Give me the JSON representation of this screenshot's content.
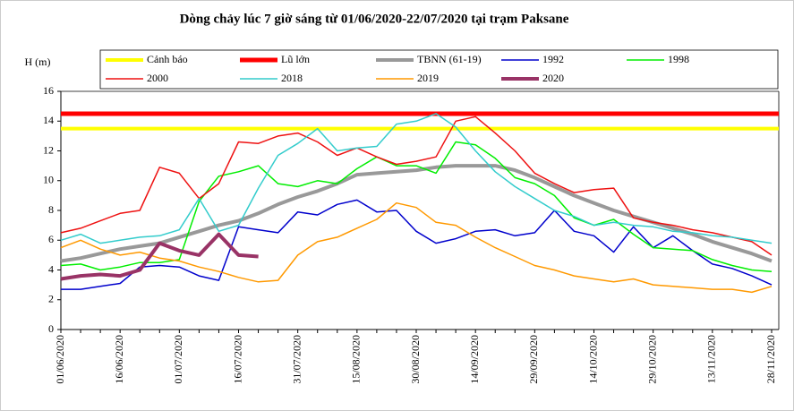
{
  "chart_data": {
    "type": "line",
    "title": "Dòng chảy lúc 7 giờ sáng từ 01/06/2020-22/07/2020 tại trạm Paksane",
    "y_label": "H (m)",
    "categories": [
      "01/06/2020",
      null,
      null,
      "16/06/2020",
      null,
      null,
      "01/07/2020",
      null,
      null,
      "16/07/2020",
      null,
      null,
      "31/07/2020",
      null,
      null,
      "15/08/2020",
      null,
      null,
      "30/08/2020",
      null,
      null,
      "14/09/2020",
      null,
      null,
      "29/09/2020",
      null,
      null,
      "14/10/2020",
      null,
      null,
      "29/10/2020",
      null,
      null,
      "13/11/2020",
      null,
      null,
      "28/11/2020"
    ],
    "ylim": [
      0,
      16
    ],
    "yticks": [
      0,
      2,
      4,
      6,
      8,
      10,
      12,
      14,
      16
    ],
    "series": [
      {
        "name": "Cảnh báo",
        "color": "#ffff00",
        "width": 4,
        "value": 13.5
      },
      {
        "name": "Lũ lớn",
        "color": "#ff0000",
        "width": 5,
        "value": 14.5
      },
      {
        "name": "TBNN (61-19)",
        "color": "#999999",
        "width": 4,
        "values": [
          4.6,
          4.8,
          5.1,
          5.4,
          5.6,
          5.8,
          6.2,
          6.6,
          7.0,
          7.3,
          7.8,
          8.4,
          8.9,
          9.3,
          9.8,
          10.4,
          10.5,
          10.6,
          10.7,
          10.9,
          11.0,
          11.0,
          11.0,
          10.7,
          10.2,
          9.6,
          9.0,
          8.5,
          8.0,
          7.6,
          7.2,
          6.8,
          6.4,
          5.9,
          5.5,
          5.1,
          4.6
        ]
      },
      {
        "name": "1992",
        "color": "#0000cc",
        "width": 1.5,
        "values": [
          2.7,
          2.7,
          2.9,
          3.1,
          4.2,
          4.3,
          4.2,
          3.6,
          3.3,
          6.9,
          6.7,
          6.5,
          7.9,
          7.7,
          8.4,
          8.7,
          7.9,
          8.0,
          6.6,
          5.8,
          6.1,
          6.6,
          6.7,
          6.3,
          6.5,
          8.0,
          6.6,
          6.3,
          5.2,
          6.9,
          5.5,
          6.3,
          5.3,
          4.4,
          4.1,
          3.6,
          3.0
        ]
      },
      {
        "name": "1998",
        "color": "#00ee00",
        "width": 1.5,
        "values": [
          4.3,
          4.4,
          4.0,
          4.2,
          4.5,
          4.5,
          4.7,
          8.6,
          10.3,
          10.6,
          11.0,
          9.8,
          9.6,
          10.0,
          9.8,
          10.8,
          11.6,
          11.0,
          11.0,
          10.5,
          12.6,
          12.4,
          11.5,
          10.2,
          9.8,
          9.0,
          7.5,
          7.0,
          7.4,
          6.4,
          5.5,
          5.4,
          5.3,
          4.7,
          4.3,
          4.0,
          3.9
        ]
      },
      {
        "name": "2000",
        "color": "#ee1111",
        "width": 1.5,
        "values": [
          6.5,
          6.8,
          7.3,
          7.8,
          8.0,
          10.9,
          10.5,
          8.8,
          9.8,
          12.6,
          12.5,
          13.0,
          13.2,
          12.6,
          11.7,
          12.2,
          11.6,
          11.1,
          11.3,
          11.6,
          14.0,
          14.3,
          13.2,
          12.0,
          10.5,
          9.8,
          9.2,
          9.4,
          9.5,
          7.5,
          7.2,
          7.0,
          6.7,
          6.5,
          6.2,
          5.9,
          5.0
        ]
      },
      {
        "name": "2018",
        "color": "#33cccc",
        "width": 1.5,
        "values": [
          6.0,
          6.4,
          5.8,
          6.0,
          6.2,
          6.3,
          6.7,
          8.8,
          6.6,
          7.0,
          9.5,
          11.7,
          12.5,
          13.5,
          12.0,
          12.2,
          12.3,
          13.8,
          14.0,
          14.5,
          13.6,
          12.0,
          10.6,
          9.6,
          8.8,
          8.0,
          7.6,
          7.0,
          7.2,
          7.0,
          6.9,
          6.6,
          6.5,
          6.3,
          6.2,
          6.0,
          5.8
        ]
      },
      {
        "name": "2019",
        "color": "#ff9900",
        "width": 1.5,
        "values": [
          5.5,
          6.0,
          5.4,
          5.0,
          5.2,
          4.8,
          4.6,
          4.2,
          3.9,
          3.5,
          3.2,
          3.3,
          5.0,
          5.9,
          6.2,
          6.8,
          7.4,
          8.5,
          8.2,
          7.2,
          7.0,
          6.2,
          5.5,
          4.9,
          4.3,
          4.0,
          3.6,
          3.4,
          3.2,
          3.4,
          3.0,
          2.9,
          2.8,
          2.7,
          2.7,
          2.5,
          2.9
        ]
      },
      {
        "name": "2020",
        "color": "#993366",
        "width": 4,
        "values": [
          3.4,
          3.6,
          3.7,
          3.6,
          4.0,
          5.8,
          5.3,
          5.0,
          6.4,
          5.0,
          4.9,
          null,
          null,
          null,
          null,
          null,
          null,
          null,
          null,
          null,
          null,
          null,
          null,
          null,
          null,
          null,
          null,
          null,
          null,
          null,
          null,
          null,
          null,
          null,
          null,
          null,
          null
        ]
      }
    ]
  }
}
